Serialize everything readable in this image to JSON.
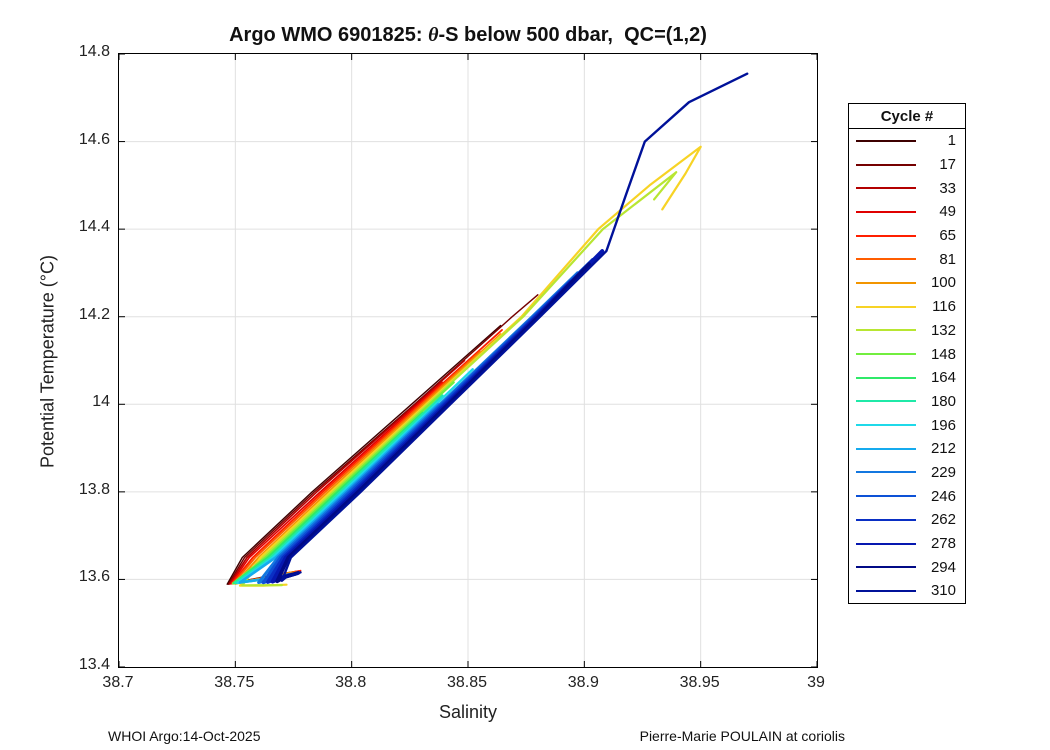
{
  "title": {
    "prefix": "Argo WMO 6901825: ",
    "theta": "θ",
    "suffix": "-S below 500 dbar,  QC=(1,2)"
  },
  "axes": {
    "xlabel": "Salinity",
    "ylabel": "Potential Temperature (°C)",
    "xlim": [
      38.7,
      39.0
    ],
    "ylim": [
      13.4,
      14.8
    ],
    "xtick_labels": [
      "38.7",
      "38.75",
      "38.8",
      "38.85",
      "38.9",
      "38.95",
      "39"
    ],
    "xtick_values": [
      38.7,
      38.75,
      38.8,
      38.85,
      38.9,
      38.95,
      39.0
    ],
    "ytick_labels": [
      "13.4",
      "13.6",
      "13.8",
      "14",
      "14.2",
      "14.4",
      "14.6",
      "14.8"
    ],
    "ytick_values": [
      13.4,
      13.6,
      13.8,
      14.0,
      14.2,
      14.4,
      14.6,
      14.8
    ]
  },
  "colors": {
    "grid": "#e0e0e0",
    "axis": "#000000",
    "background": "#ffffff"
  },
  "legend": {
    "title": "Cycle #"
  },
  "footer": {
    "left": "WHOI Argo:14-Oct-2025",
    "right": "Pierre-Marie POULAIN at coriolis"
  },
  "chart_data": {
    "type": "line",
    "title": "Argo WMO 6901825: θ-S below 500 dbar,  QC=(1,2)",
    "xlabel": "Salinity",
    "ylabel": "Potential Temperature (°C)",
    "xlim": [
      38.7,
      39.0
    ],
    "ylim": [
      13.4,
      14.8
    ],
    "grid": true,
    "legend_position": "right-outside",
    "legend_title": "Cycle #",
    "series": [
      {
        "name": "1",
        "color": "#3d0000",
        "width": 1.4,
        "points": [
          [
            38.776,
            13.618
          ],
          [
            38.766,
            13.61
          ],
          [
            38.754,
            13.597
          ],
          [
            38.7465,
            13.589
          ],
          [
            38.753,
            13.65
          ],
          [
            38.783,
            13.8
          ],
          [
            38.8257,
            14.0
          ],
          [
            38.864,
            14.18
          ]
        ]
      },
      {
        "name": "17",
        "color": "#750000",
        "width": 1.4,
        "points": [
          [
            38.774,
            13.616
          ],
          [
            38.759,
            13.601
          ],
          [
            38.747,
            13.589
          ],
          [
            38.754,
            13.65
          ],
          [
            38.784,
            13.8
          ],
          [
            38.827,
            14.0
          ],
          [
            38.869,
            14.2
          ],
          [
            38.88,
            14.25
          ]
        ]
      },
      {
        "name": "33",
        "color": "#b30000",
        "width": 1.6,
        "points": [
          [
            38.777,
            13.619
          ],
          [
            38.76,
            13.602
          ],
          [
            38.7475,
            13.59
          ],
          [
            38.755,
            13.65
          ],
          [
            38.785,
            13.8
          ],
          [
            38.8275,
            14.0
          ],
          [
            38.8485,
            14.1
          ]
        ]
      },
      {
        "name": "49",
        "color": "#e00000",
        "width": 1.6,
        "points": [
          [
            38.775,
            13.617
          ],
          [
            38.759,
            13.601
          ],
          [
            38.748,
            13.59
          ],
          [
            38.756,
            13.65
          ],
          [
            38.7865,
            13.8
          ],
          [
            38.8283,
            14.0
          ],
          [
            38.839,
            14.05
          ]
        ]
      },
      {
        "name": "65",
        "color": "#ff1f00",
        "width": 1.8,
        "points": [
          [
            38.778,
            13.62
          ],
          [
            38.761,
            13.603
          ],
          [
            38.7485,
            13.591
          ],
          [
            38.7575,
            13.65
          ],
          [
            38.7876,
            13.8
          ],
          [
            38.8292,
            14.0
          ],
          [
            38.8646,
            14.17
          ]
        ]
      },
      {
        "name": "81",
        "color": "#ff5d00",
        "width": 1.8,
        "points": [
          [
            38.776,
            13.618
          ],
          [
            38.76,
            13.602
          ],
          [
            38.749,
            13.59
          ],
          [
            38.7586,
            13.65
          ],
          [
            38.7887,
            13.8
          ],
          [
            38.83,
            14.0
          ],
          [
            38.855,
            14.12
          ]
        ]
      },
      {
        "name": "100",
        "color": "#f29500",
        "width": 2.0,
        "points": [
          [
            38.7745,
            13.616
          ],
          [
            38.761,
            13.602
          ],
          [
            38.75,
            13.59
          ],
          [
            38.76,
            13.65
          ],
          [
            38.79,
            13.8
          ],
          [
            38.831,
            14.0
          ],
          [
            38.864,
            14.16
          ]
        ]
      },
      {
        "name": "116",
        "color": "#f7d325",
        "width": 2.2,
        "points": [
          [
            38.772,
            13.588
          ],
          [
            38.762,
            13.586
          ],
          [
            38.752,
            13.586
          ],
          [
            38.7608,
            13.65
          ],
          [
            38.791,
            13.8
          ],
          [
            38.832,
            14.0
          ],
          [
            38.873,
            14.2
          ],
          [
            38.906,
            14.4
          ],
          [
            38.928,
            14.5
          ],
          [
            38.95,
            14.588
          ],
          [
            38.9435,
            14.527
          ],
          [
            38.9335,
            14.445
          ]
        ]
      },
      {
        "name": "132",
        "color": "#b8e632",
        "width": 2.2,
        "points": [
          [
            38.77,
            13.587
          ],
          [
            38.753,
            13.5865
          ],
          [
            38.7619,
            13.65
          ],
          [
            38.792,
            13.8
          ],
          [
            38.8327,
            14.0
          ],
          [
            38.8737,
            14.2
          ],
          [
            38.908,
            14.4
          ],
          [
            38.9395,
            14.53
          ],
          [
            38.93,
            14.468
          ]
        ]
      },
      {
        "name": "148",
        "color": "#72ee3f",
        "width": 2.4,
        "points": [
          [
            38.7655,
            13.602
          ],
          [
            38.756,
            13.596
          ],
          [
            38.749,
            13.591
          ],
          [
            38.763,
            13.65
          ],
          [
            38.793,
            13.8
          ],
          [
            38.8336,
            14.0
          ],
          [
            38.8438,
            14.05
          ]
        ]
      },
      {
        "name": "164",
        "color": "#2fe969",
        "width": 2.4,
        "points": [
          [
            38.766,
            13.603
          ],
          [
            38.757,
            13.597
          ],
          [
            38.7495,
            13.592
          ],
          [
            38.764,
            13.65
          ],
          [
            38.794,
            13.8
          ],
          [
            38.8305,
            13.98
          ]
        ]
      },
      {
        "name": "180",
        "color": "#1fe9a8",
        "width": 2.4,
        "points": [
          [
            38.767,
            13.604
          ],
          [
            38.758,
            13.598
          ],
          [
            38.75,
            13.592
          ],
          [
            38.7651,
            13.65
          ],
          [
            38.7951,
            13.8
          ],
          [
            38.839,
            14.02
          ]
        ]
      },
      {
        "name": "196",
        "color": "#1fd9e9",
        "width": 2.4,
        "points": [
          [
            38.768,
            13.605
          ],
          [
            38.759,
            13.598
          ],
          [
            38.751,
            13.592
          ],
          [
            38.7662,
            13.65
          ],
          [
            38.7962,
            13.8
          ],
          [
            38.8363,
            14.0
          ],
          [
            38.852,
            14.08
          ]
        ]
      },
      {
        "name": "212",
        "color": "#15aaee",
        "width": 2.6,
        "points": [
          [
            38.769,
            13.606
          ],
          [
            38.76,
            13.599
          ],
          [
            38.752,
            13.593
          ],
          [
            38.7673,
            13.65
          ],
          [
            38.7973,
            13.8
          ],
          [
            38.8371,
            14.0
          ]
        ]
      },
      {
        "name": "229",
        "color": "#1377e0",
        "width": 3.0,
        "points": [
          [
            38.773,
            13.611
          ],
          [
            38.766,
            13.601
          ],
          [
            38.76,
            13.593
          ],
          [
            38.7684,
            13.65
          ],
          [
            38.7984,
            13.8
          ],
          [
            38.838,
            14.0
          ],
          [
            38.8776,
            14.2
          ],
          [
            38.897,
            14.3
          ]
        ]
      },
      {
        "name": "246",
        "color": "#0d51d6",
        "width": 3.4,
        "points": [
          [
            38.7745,
            13.612
          ],
          [
            38.767,
            13.602
          ],
          [
            38.762,
            13.593
          ],
          [
            38.7695,
            13.65
          ],
          [
            38.7995,
            13.8
          ],
          [
            38.8389,
            14.0
          ],
          [
            38.8783,
            14.2
          ],
          [
            38.9035,
            14.33
          ]
        ]
      },
      {
        "name": "262",
        "color": "#0a2fc4",
        "width": 3.6,
        "points": [
          [
            38.776,
            13.613
          ],
          [
            38.769,
            13.603
          ],
          [
            38.764,
            13.594
          ],
          [
            38.7706,
            13.65
          ],
          [
            38.8006,
            13.8
          ],
          [
            38.8398,
            14.0
          ],
          [
            38.879,
            14.2
          ],
          [
            38.894,
            14.28
          ]
        ]
      },
      {
        "name": "278",
        "color": "#0618b0",
        "width": 3.8,
        "points": [
          [
            38.7765,
            13.614
          ],
          [
            38.77,
            13.604
          ],
          [
            38.766,
            13.595
          ],
          [
            38.7717,
            13.65
          ],
          [
            38.8017,
            13.8
          ],
          [
            38.8407,
            14.0
          ],
          [
            38.8796,
            14.2
          ],
          [
            38.9077,
            14.35
          ]
        ]
      },
      {
        "name": "294",
        "color": "#010a86",
        "width": 3.8,
        "points": [
          [
            38.777,
            13.615
          ],
          [
            38.771,
            13.605
          ],
          [
            38.768,
            13.596
          ],
          [
            38.7728,
            13.65
          ],
          [
            38.8028,
            13.8
          ],
          [
            38.8415,
            14.0
          ],
          [
            38.8803,
            14.2
          ],
          [
            38.902,
            14.32
          ]
        ]
      },
      {
        "name": "310",
        "color": "#001199",
        "width": 2.4,
        "points": [
          [
            38.778,
            13.616
          ],
          [
            38.772,
            13.606
          ],
          [
            38.77,
            13.597
          ],
          [
            38.7739,
            13.65
          ],
          [
            38.8039,
            13.8
          ],
          [
            38.8424,
            14.0
          ],
          [
            38.881,
            14.2
          ],
          [
            38.9095,
            14.35
          ],
          [
            38.918,
            14.48
          ],
          [
            38.926,
            14.6
          ],
          [
            38.945,
            14.69
          ],
          [
            38.97,
            14.755
          ]
        ]
      }
    ]
  }
}
